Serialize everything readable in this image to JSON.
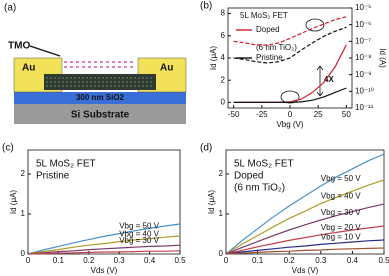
{
  "diagram": {
    "panel_label": "(a)",
    "labels": [
      "TMO",
      "Au",
      "Au",
      "300 nm SiO2",
      "Si Substrate"
    ]
  },
  "chart_data": [
    {
      "type": "line",
      "panel_label": "(b)",
      "x_label": "Vbg (V)",
      "y_label": "Id (μA)",
      "y2_label": "Id (A)",
      "annotations": [
        "5L MoS₂ FET",
        "(6 nm TiO₂)",
        "4X"
      ],
      "x": [
        -50,
        -40,
        -30,
        -20,
        -10,
        0,
        10,
        20,
        30,
        40,
        50
      ],
      "xlim": [
        -55,
        55
      ],
      "xticks": [
        -50,
        -25,
        0,
        25,
        50
      ],
      "ylim": [
        -0.5,
        8.5
      ],
      "yticks": [
        0,
        2,
        4,
        6,
        8
      ],
      "y2lim": [
        1e-11,
        1e-05
      ],
      "y2log": true,
      "y2ticks": [
        {
          "value": 1e-11,
          "label": "10⁻¹¹"
        },
        {
          "value": 1e-10,
          "label": "10⁻¹⁰"
        },
        {
          "value": 1e-09,
          "label": "10⁻⁹"
        },
        {
          "value": 1e-08,
          "label": "10⁻⁸"
        },
        {
          "value": 1e-07,
          "label": "10⁻⁷"
        },
        {
          "value": 1e-06,
          "label": "10⁻⁶"
        },
        {
          "value": 1e-05,
          "label": "10⁻⁵"
        }
      ],
      "series": [
        {
          "name": "Doped",
          "color": "#d11f2a",
          "values": [
            0,
            0,
            0,
            0,
            0,
            0.05,
            0.3,
            0.9,
            1.8,
            3.2,
            5.2
          ]
        },
        {
          "name": "Pristine",
          "color": "#111111",
          "values": [
            0,
            0,
            0,
            0,
            0,
            0,
            0.05,
            0.2,
            0.5,
            0.9,
            1.3
          ]
        },
        {
          "color": "#d11f2a",
          "axis": "y2",
          "dash": true,
          "values": [
            1e-07,
            8e-08,
            6e-08,
            6e-08,
            8e-08,
            1.5e-07,
            3e-07,
            6e-07,
            1.1e-06,
            2e-06,
            3e-06
          ]
        },
        {
          "color": "#111111",
          "axis": "y2",
          "dash": true,
          "values": [
            1e-08,
            8e-09,
            6e-09,
            5e-09,
            6e-09,
            1e-08,
            3e-08,
            8e-08,
            2e-07,
            4e-07,
            7e-07
          ]
        }
      ]
    },
    {
      "type": "line",
      "panel_label": "(c)",
      "x_label": "Vds (V)",
      "y_label": "Id (μA)",
      "annotations": [
        "5L MoS₂ FET",
        "Pristine"
      ],
      "x": [
        0,
        0.05,
        0.1,
        0.15,
        0.2,
        0.25,
        0.3,
        0.35,
        0.4,
        0.45,
        0.5
      ],
      "xlim": [
        0,
        0.5
      ],
      "xticks": [
        0,
        0.1,
        0.2,
        0.3,
        0.4,
        0.5
      ],
      "ylim": [
        0,
        2.6
      ],
      "yticks": [
        0,
        1,
        2
      ],
      "series": [
        {
          "name": "Vbg = 50 V",
          "color": "#4a90c8",
          "values": [
            0,
            0.1,
            0.19,
            0.28,
            0.36,
            0.44,
            0.51,
            0.58,
            0.64,
            0.7,
            0.75
          ]
        },
        {
          "name": "Vbg = 40 V",
          "color": "#b09a2a",
          "values": [
            0,
            0.06,
            0.11,
            0.17,
            0.22,
            0.26,
            0.31,
            0.35,
            0.38,
            0.42,
            0.45
          ]
        },
        {
          "name": "Vbg = 30 V",
          "color": "#7a3a6a",
          "values": [
            0,
            0.03,
            0.06,
            0.08,
            0.11,
            0.13,
            0.15,
            0.17,
            0.19,
            0.2,
            0.22
          ]
        },
        {
          "color": "#c0404a",
          "values": [
            0,
            0.01,
            0.02,
            0.03,
            0.04,
            0.05,
            0.05,
            0.06,
            0.07,
            0.07,
            0.08
          ]
        }
      ]
    },
    {
      "type": "line",
      "panel_label": "(d)",
      "x_label": "Vds (V)",
      "y_label": "Id (μA)",
      "annotations": [
        "5L MoS₂ FET",
        "Doped",
        "(6 nm TiO₂)"
      ],
      "x": [
        0,
        0.05,
        0.1,
        0.15,
        0.2,
        0.25,
        0.3,
        0.35,
        0.4,
        0.45,
        0.5
      ],
      "xlim": [
        0,
        0.5
      ],
      "xticks": [
        0,
        0.1,
        0.2,
        0.3,
        0.4,
        0.5
      ],
      "ylim": [
        0,
        2.6
      ],
      "yticks": [
        0,
        1,
        2
      ],
      "series": [
        {
          "name": "Vbg = 50 V",
          "color": "#4a90c8",
          "values": [
            0,
            0.33,
            0.63,
            0.93,
            1.2,
            1.45,
            1.7,
            1.93,
            2.13,
            2.33,
            2.5
          ]
        },
        {
          "name": "Vbg = 40 V",
          "color": "#b09a2a",
          "values": [
            0,
            0.24,
            0.46,
            0.68,
            0.89,
            1.07,
            1.26,
            1.42,
            1.57,
            1.72,
            1.85
          ]
        },
        {
          "name": "Vbg = 30 V",
          "color": "#7a3a6a",
          "values": [
            0,
            0.16,
            0.31,
            0.46,
            0.6,
            0.73,
            0.85,
            0.96,
            1.06,
            1.16,
            1.25
          ]
        },
        {
          "name": "Vbg = 20 V",
          "color": "#c0404a",
          "values": [
            0,
            0.09,
            0.18,
            0.26,
            0.34,
            0.41,
            0.48,
            0.54,
            0.6,
            0.65,
            0.7
          ]
        },
        {
          "name": "Vbg = 10 V",
          "color": "#2a2a8a",
          "values": [
            0,
            0.05,
            0.09,
            0.13,
            0.17,
            0.2,
            0.24,
            0.27,
            0.3,
            0.33,
            0.35
          ]
        },
        {
          "color": "#a05030",
          "values": [
            0,
            0.02,
            0.04,
            0.06,
            0.07,
            0.09,
            0.1,
            0.12,
            0.13,
            0.14,
            0.15
          ]
        }
      ]
    }
  ]
}
